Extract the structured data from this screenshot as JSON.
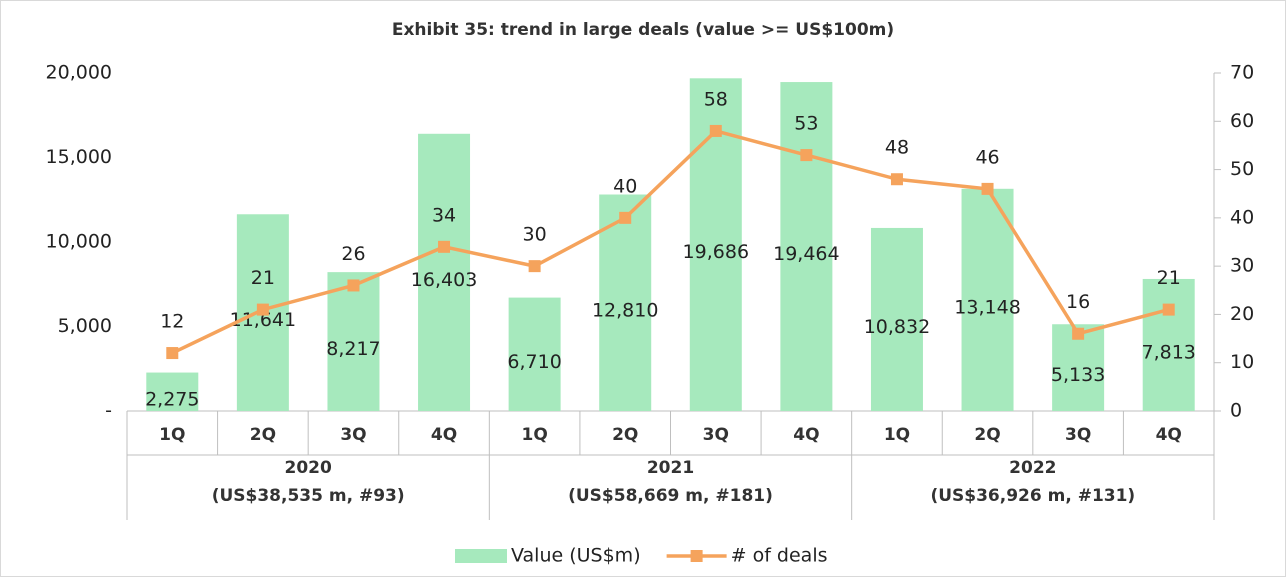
{
  "chart_data": {
    "type": "combo",
    "title": "Exhibit 35: trend in large deals (value >= US$100m)",
    "categories": [
      "1Q",
      "2Q",
      "3Q",
      "4Q",
      "1Q",
      "2Q",
      "3Q",
      "4Q",
      "1Q",
      "2Q",
      "3Q",
      "4Q"
    ],
    "groups": [
      {
        "name": "2020",
        "detail": "(US$38,535 m, #93)"
      },
      {
        "name": "2021",
        "detail": "(US$58,669 m, #181)"
      },
      {
        "name": "2022",
        "detail": "(US$36,926 m, #131)"
      }
    ],
    "series": [
      {
        "name": "Value (US$m)",
        "type": "bar",
        "color": "#a6e9bd",
        "values": [
          2275,
          11641,
          8217,
          16403,
          6710,
          12810,
          19686,
          19464,
          10832,
          13148,
          5133,
          7813
        ],
        "value_labels": [
          "2,275",
          "11,641",
          "8,217",
          "16,403",
          "6,710",
          "12,810",
          "19,686",
          "19,464",
          "10,832",
          "13,148",
          "5,133",
          "7,813"
        ]
      },
      {
        "name": "# of deals",
        "type": "line",
        "axis": "y2",
        "color": "#f5a35c",
        "values": [
          12,
          21,
          26,
          34,
          30,
          40,
          58,
          53,
          48,
          46,
          16,
          21
        ]
      }
    ],
    "ylim": [
      0,
      20000
    ],
    "yticks": [
      {
        "value": 0,
        "label": "-"
      },
      {
        "value": 5000,
        "label": "5,000"
      },
      {
        "value": 10000,
        "label": "10,000"
      },
      {
        "value": 15000,
        "label": "15,000"
      },
      {
        "value": 20000,
        "label": "20,000"
      }
    ],
    "y2lim": [
      0,
      70
    ],
    "y2ticks": [
      0,
      10,
      20,
      30,
      40,
      50,
      60,
      70
    ],
    "legend": "bottom"
  }
}
